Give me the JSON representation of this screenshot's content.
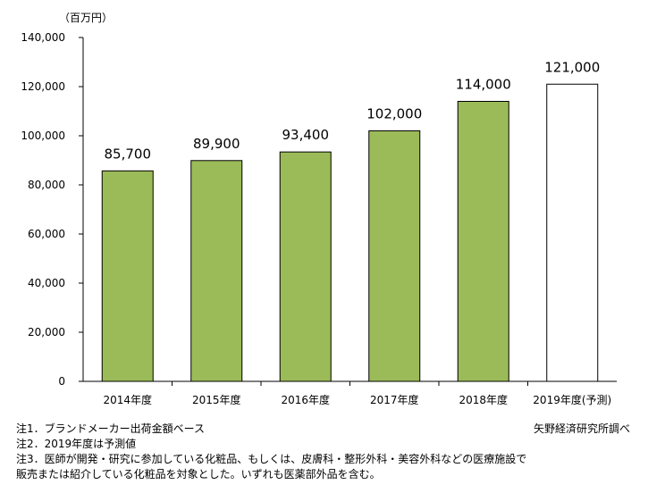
{
  "chart_data": {
    "type": "bar",
    "unit_label": "（百万円）",
    "categories": [
      "2014年度",
      "2015年度",
      "2016年度",
      "2017年度",
      "2018年度",
      "2019年度(予測)"
    ],
    "values": [
      85700,
      89900,
      93400,
      102000,
      114000,
      121000
    ],
    "value_labels": [
      "85,700",
      "89,900",
      "93,400",
      "102,000",
      "114,000",
      "121,000"
    ],
    "forecast": [
      false,
      false,
      false,
      false,
      false,
      true
    ],
    "ylim": [
      0,
      140000
    ],
    "yticks": [
      0,
      20000,
      40000,
      60000,
      80000,
      100000,
      120000,
      140000
    ],
    "ytick_labels": [
      "0",
      "20,000",
      "40,000",
      "60,000",
      "80,000",
      "100,000",
      "120,000",
      "140,000"
    ],
    "grid": false,
    "colors": {
      "actual": "#9bbb59",
      "forecast": "#ffffff",
      "edge": "#000000"
    }
  },
  "notes": [
    "注1．ブランドメーカー出荷金額ベース",
    "注2．2019年度は予測値",
    "注3．医師が開発・研究に参加している化粧品、もしくは、皮膚科・整形外科・美容外科などの医療施設で",
    "販売または紹介している化粧品を対象とした。いずれも医薬部外品を含む。"
  ],
  "source": "矢野経済研究所調べ"
}
